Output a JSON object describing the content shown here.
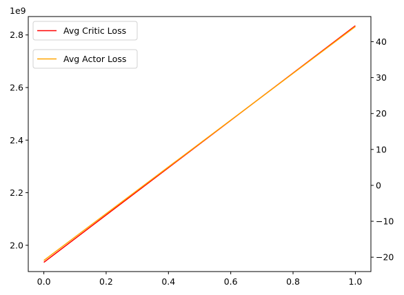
{
  "chart_data": {
    "type": "line",
    "x": [
      0,
      1
    ],
    "left_axis": {
      "offset_label": "1e9",
      "ylim": [
        1.9,
        2.87
      ],
      "ticks": [
        2.0,
        2.2,
        2.4,
        2.6,
        2.8
      ],
      "tick_labels": [
        "2.0",
        "2.2",
        "2.4",
        "2.6",
        "2.8"
      ]
    },
    "right_axis": {
      "ylim": [
        -24,
        47
      ],
      "ticks": [
        -20,
        -10,
        0,
        10,
        20,
        30,
        40
      ],
      "tick_labels": [
        "−20",
        "−10",
        "0",
        "10",
        "20",
        "30",
        "40"
      ]
    },
    "x_axis": {
      "xlim": [
        -0.05,
        1.05
      ],
      "ticks": [
        0,
        0.2,
        0.4,
        0.6,
        0.8,
        1.0
      ],
      "tick_labels": [
        "0.0",
        "0.2",
        "0.4",
        "0.6",
        "0.8",
        "1.0"
      ]
    },
    "series": [
      {
        "name": "Avg Critic Loss",
        "axis": "left",
        "color": "#ff0000",
        "values": [
          1.935,
          2.835
        ]
      },
      {
        "name": "Avg Actor Loss",
        "axis": "right",
        "color": "#ffa500",
        "values": [
          -20.9,
          44.2
        ]
      }
    ],
    "legend_placement": "upper-left (two separate legends)",
    "grid": false
  }
}
